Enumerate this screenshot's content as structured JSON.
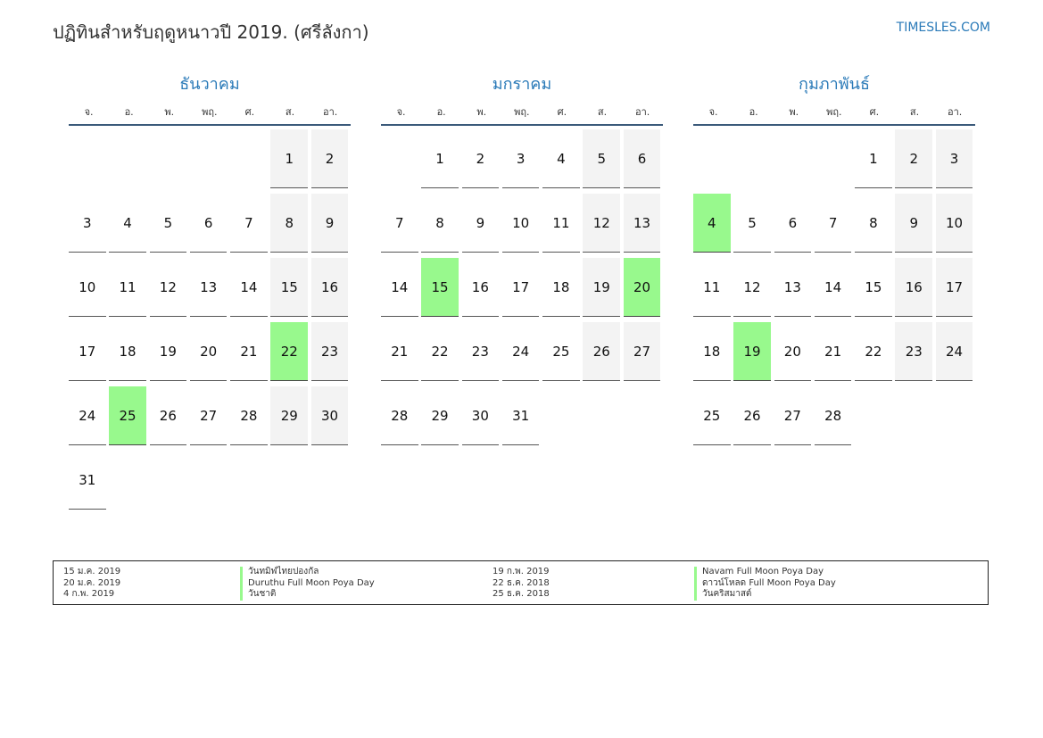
{
  "header": {
    "title": "ปฏิทินสำหรับฤดูหนาวปี 2019. (ศรีลังกา)",
    "brand": "TIMESLES.COM"
  },
  "weekdays": [
    "จ.",
    "อ.",
    "พ.",
    "พฤ.",
    "ศ.",
    "ส.",
    "อา."
  ],
  "months": [
    {
      "name": "ธันวาคม",
      "offset": 5,
      "days": 31,
      "holidays": [
        22,
        25
      ]
    },
    {
      "name": "มกราคม",
      "offset": 1,
      "days": 31,
      "holidays": [
        15,
        20
      ]
    },
    {
      "name": "กุมภาพันธ์",
      "offset": 4,
      "days": 28,
      "holidays": [
        4,
        19
      ]
    }
  ],
  "legend": [
    {
      "date": "15 ม.ค. 2019",
      "name": "วันทมิฬไทยปองกัล"
    },
    {
      "date": "20 ม.ค. 2019",
      "name": "Duruthu Full Moon Poya Day"
    },
    {
      "date": "4 ก.พ. 2019",
      "name": "วันชาติ"
    },
    {
      "date": "19 ก.พ. 2019",
      "name": "Navam Full Moon Poya Day"
    },
    {
      "date": "22 ธ.ค. 2018",
      "name": "ดาวน์โหลด Full Moon Poya Day"
    },
    {
      "date": "25 ธ.ค. 2018",
      "name": "วันคริสมาสต์"
    }
  ],
  "colors": {
    "accent": "#2a7ab8",
    "holiday": "#98f98d",
    "weekend": "#f3f3f3"
  }
}
